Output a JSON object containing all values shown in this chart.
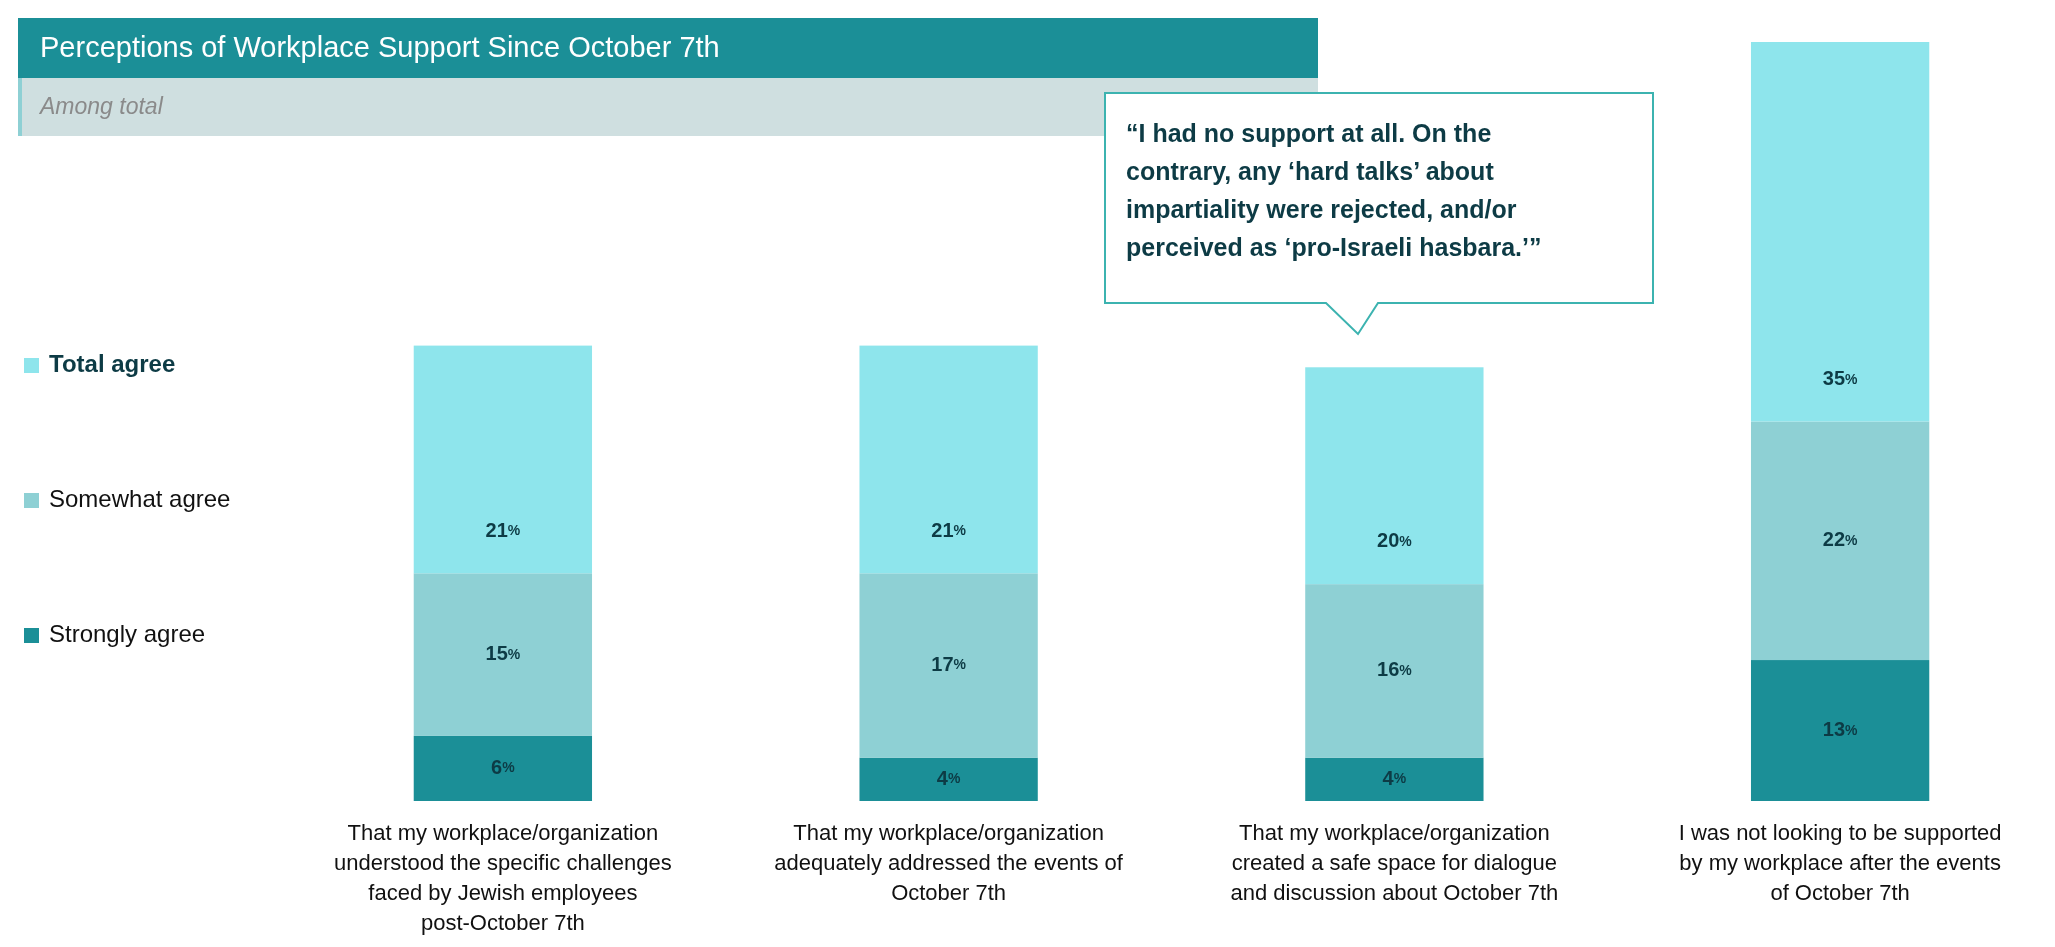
{
  "chart_data": {
    "type": "bar",
    "stacked": true,
    "title": "Perceptions of Workplace Support Since October 7th",
    "subtitle": "Among total",
    "categories": [
      "That my workplace/organization understood the specific challenges faced by Jewish employees post-October 7th",
      "That my workplace/organization adequately addressed the events of October 7th",
      "That my workplace/organization created a safe space for dialogue and discussion about October 7th",
      "I was not looking to be supported by my workplace after the events of October 7th"
    ],
    "series": [
      {
        "name": "Strongly agree",
        "color": "#1b8f97",
        "values": [
          6,
          4,
          4,
          13
        ],
        "value_labels": [
          "6%",
          "4%",
          "4%",
          "13%"
        ]
      },
      {
        "name": "Somewhat agree",
        "color": "#8ed0d4",
        "values": [
          15,
          17,
          16,
          22
        ],
        "value_labels": [
          "15%",
          "17%",
          "16%",
          "22%"
        ]
      },
      {
        "name": "Total agree",
        "color": "#8ee5ec",
        "values": [
          21,
          21,
          20,
          35
        ],
        "value_labels": [
          "21%",
          "21%",
          "20%",
          "35%"
        ]
      }
    ],
    "legend": "left",
    "annotations": [
      "“I had no support at all. On the contrary, any ‘hard talks’ about impartiality were rejected, and/or perceived as ‘pro-Israeli hasbara.’”"
    ]
  }
}
